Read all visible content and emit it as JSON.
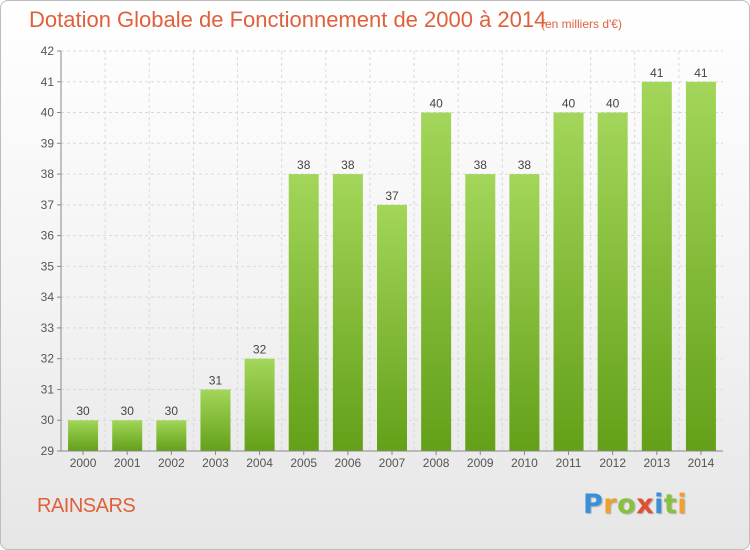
{
  "title": "Dotation Globale de Fonctionnement de 2000 à 2014",
  "unit_note": "(en milliers d'€)",
  "place_name": "RAINSARS",
  "logo": {
    "letters": [
      "P",
      "r",
      "o",
      "x",
      "i",
      "t",
      "i"
    ],
    "colors": [
      "#3a8fd6",
      "#f0a030",
      "#88c040",
      "#e05030",
      "#3a8fd6",
      "#88c040",
      "#f0a030"
    ]
  },
  "colors": {
    "bar_top": "#a3d65a",
    "bar_bottom": "#63a018",
    "title": "#e0603c",
    "grid": "#d9d9d9",
    "axis": "#888888"
  },
  "chart_data": {
    "type": "bar",
    "categories": [
      "2000",
      "2001",
      "2002",
      "2003",
      "2004",
      "2005",
      "2006",
      "2007",
      "2008",
      "2009",
      "2010",
      "2011",
      "2012",
      "2013",
      "2014"
    ],
    "values": [
      30,
      30,
      30,
      31,
      32,
      38,
      38,
      37,
      40,
      38,
      38,
      40,
      40,
      41,
      41
    ],
    "data_labels": [
      "30",
      "30",
      "30",
      "31",
      "32",
      "38",
      "38",
      "37",
      "40",
      "38",
      "38",
      "40",
      "40",
      "41",
      "41"
    ],
    "y_ticks": [
      29,
      30,
      31,
      32,
      33,
      34,
      35,
      36,
      37,
      38,
      39,
      40,
      41,
      42
    ],
    "ylim": [
      29,
      42
    ],
    "grid": true,
    "legend": "none"
  }
}
